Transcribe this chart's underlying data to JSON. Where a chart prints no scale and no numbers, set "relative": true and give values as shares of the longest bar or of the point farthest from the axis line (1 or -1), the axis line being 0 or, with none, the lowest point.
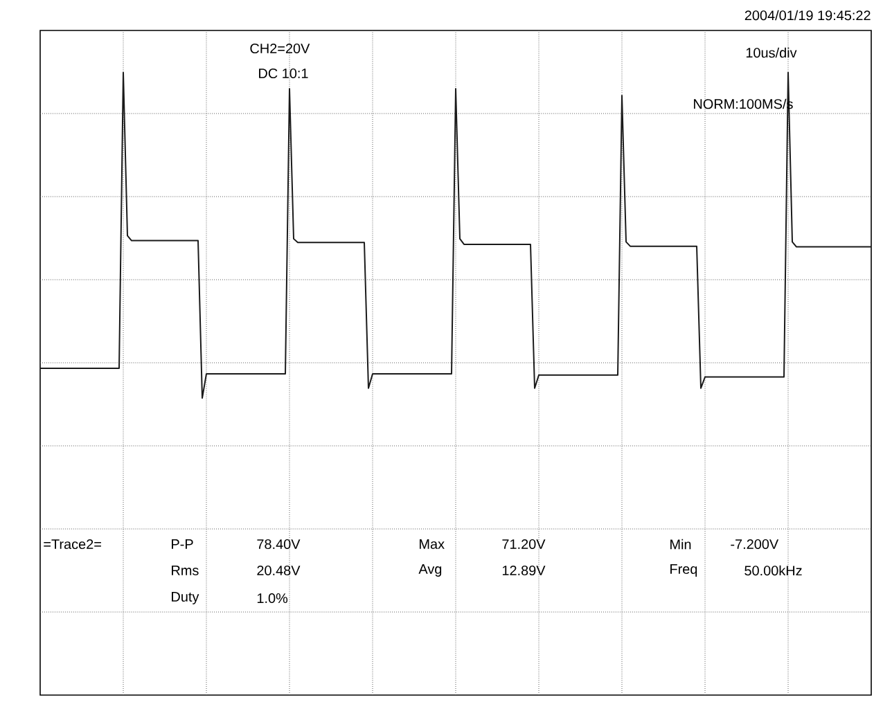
{
  "chart_data": {
    "type": "line",
    "relative": true,
    "grid": true,
    "marker": "none",
    "line_style": "solid",
    "categories": [
      null,
      null,
      null,
      null,
      null,
      null,
      null,
      null,
      null,
      null,
      null,
      null,
      null,
      null,
      null,
      null,
      null,
      null,
      null,
      null,
      null,
      null,
      null,
      null,
      null,
      null,
      null,
      null,
      null,
      null,
      null,
      null,
      null,
      null,
      null,
      null,
      null,
      null,
      null,
      null,
      null,
      null,
      null,
      null,
      null,
      null,
      null,
      null,
      null,
      null,
      null,
      null,
      null,
      null,
      null,
      null,
      null,
      null,
      null,
      null,
      null,
      null,
      null,
      null,
      null,
      null,
      null,
      null,
      null,
      null,
      null,
      null,
      null,
      null,
      null,
      null,
      null,
      null,
      null,
      null,
      null,
      null,
      null,
      null,
      null,
      null,
      null,
      null,
      null,
      null,
      null,
      null,
      null,
      null,
      null,
      null,
      null,
      null,
      null,
      null,
      null,
      null,
      null,
      null,
      null,
      null,
      null,
      null,
      null,
      null,
      null,
      null,
      null,
      null,
      null,
      null,
      null,
      null,
      null,
      null,
      null,
      null,
      null,
      null,
      null,
      null,
      null,
      null,
      null,
      null,
      null,
      null,
      null,
      null,
      null,
      null,
      null,
      null,
      null,
      null,
      null,
      null,
      null,
      null,
      null,
      null,
      null,
      null,
      null,
      null,
      null,
      null,
      null,
      null,
      null,
      null,
      null,
      null,
      null,
      null,
      null,
      null,
      null,
      null,
      null,
      null,
      null,
      null,
      null,
      null,
      null,
      null,
      null,
      null,
      null,
      null,
      null,
      null,
      null,
      null,
      null,
      null,
      null,
      null,
      null,
      null,
      null,
      null,
      null,
      null,
      null,
      null,
      null,
      null,
      null,
      null,
      null,
      null,
      null,
      null,
      null
    ],
    "annotations": [
      "2004/01/19  19:45:22",
      "CH2=20V",
      "DC  10:1",
      "10us/div",
      "NORM:100MS/s",
      "=Trace2=",
      "P-P",
      "78.40V",
      "Max",
      "71.20V",
      "Min",
      "-7.200V",
      "Rms",
      "20.48V",
      "Avg",
      "12.89V",
      "Freq",
      "50.00kHz",
      "Duty",
      "1.0%"
    ],
    "series": [
      {
        "color": "#1a1a1a",
        "values": [
          0.525,
          0.525,
          0.525,
          0.525,
          0.525,
          0.525,
          0.525,
          0.525,
          0.525,
          0.525,
          0.525,
          0.525,
          0.525,
          0.525,
          0.525,
          0.525,
          0.525,
          0.525,
          0.525,
          0.525,
          1.0,
          0.738,
          0.73,
          0.73,
          0.73,
          0.73,
          0.73,
          0.73,
          0.73,
          0.73,
          0.73,
          0.73,
          0.73,
          0.73,
          0.73,
          0.73,
          0.73,
          0.73,
          0.73,
          0.477,
          0.516,
          0.516,
          0.516,
          0.516,
          0.516,
          0.516,
          0.516,
          0.516,
          0.516,
          0.516,
          0.516,
          0.516,
          0.516,
          0.516,
          0.516,
          0.516,
          0.516,
          0.516,
          0.516,
          0.516,
          0.974,
          0.733,
          0.727,
          0.727,
          0.727,
          0.727,
          0.727,
          0.727,
          0.727,
          0.727,
          0.727,
          0.727,
          0.727,
          0.727,
          0.727,
          0.727,
          0.727,
          0.727,
          0.727,
          0.493,
          0.516,
          0.516,
          0.516,
          0.516,
          0.516,
          0.516,
          0.516,
          0.516,
          0.516,
          0.516,
          0.516,
          0.516,
          0.516,
          0.516,
          0.516,
          0.516,
          0.516,
          0.516,
          0.516,
          0.516,
          0.974,
          0.733,
          0.724,
          0.724,
          0.724,
          0.724,
          0.724,
          0.724,
          0.724,
          0.724,
          0.724,
          0.724,
          0.724,
          0.724,
          0.724,
          0.724,
          0.724,
          0.724,
          0.724,
          0.493,
          0.514,
          0.514,
          0.514,
          0.514,
          0.514,
          0.514,
          0.514,
          0.514,
          0.514,
          0.514,
          0.514,
          0.514,
          0.514,
          0.514,
          0.514,
          0.514,
          0.514,
          0.514,
          0.514,
          0.514,
          0.963,
          0.728,
          0.721,
          0.721,
          0.721,
          0.721,
          0.721,
          0.721,
          0.721,
          0.721,
          0.721,
          0.721,
          0.721,
          0.721,
          0.721,
          0.721,
          0.721,
          0.721,
          0.721,
          0.493,
          0.511,
          0.511,
          0.511,
          0.511,
          0.511,
          0.511,
          0.511,
          0.511,
          0.511,
          0.511,
          0.511,
          0.511,
          0.511,
          0.511,
          0.511,
          0.511,
          0.511,
          0.511,
          0.511,
          0.511,
          1.0,
          0.728,
          0.72,
          0.72,
          0.72,
          0.72,
          0.72,
          0.72,
          0.72,
          0.72,
          0.72,
          0.72,
          0.72,
          0.72,
          0.72,
          0.72,
          0.72,
          0.72,
          0.72,
          0.72,
          0.72
        ]
      }
    ]
  }
}
